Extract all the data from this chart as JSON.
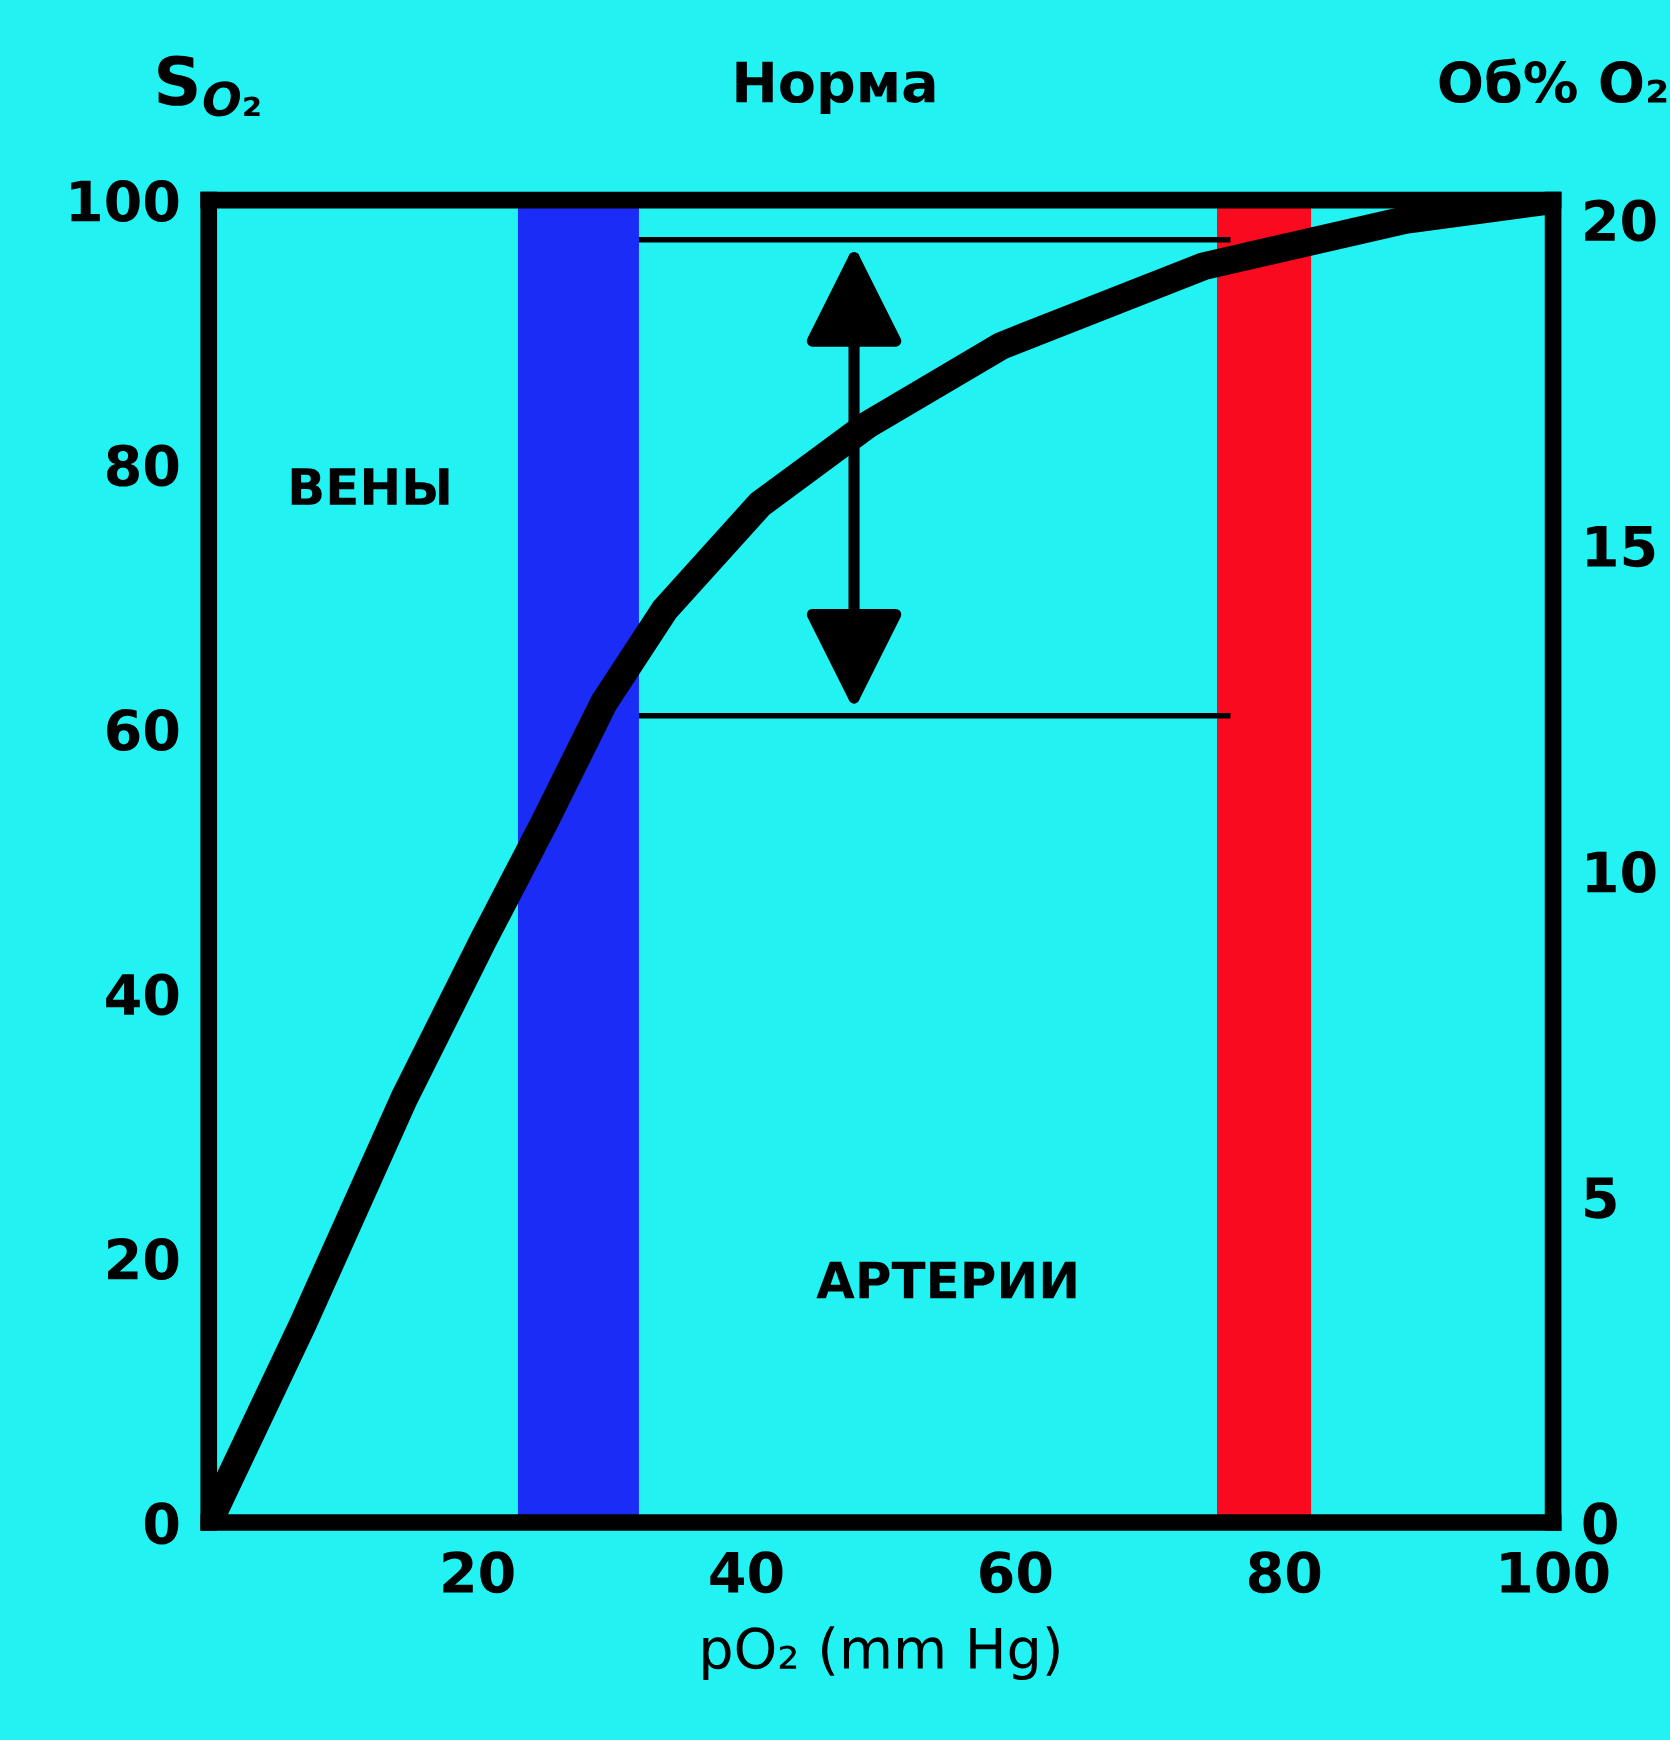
{
  "chart_data": {
    "type": "line",
    "title": "Норма",
    "xlabel": "pO₂ (mm Hg)",
    "ylabel": "S$_{O₂}$",
    "y2label": "Об% O₂",
    "xlim": [
      0,
      100
    ],
    "xticks": [
      20,
      40,
      60,
      80,
      100
    ],
    "ylim": [
      0,
      100
    ],
    "yticks": [
      0,
      20,
      40,
      60,
      80,
      100
    ],
    "y2lim": [
      0,
      20.3
    ],
    "y2ticks": [
      0,
      5,
      10,
      15,
      20
    ],
    "grid": false,
    "legend": false,
    "marker": "none",
    "line_style": "solid",
    "annotations": [
      "ВЕНЫ",
      "АРТЕРИИ"
    ],
    "bands": [
      {
        "axis": "x",
        "from": 23,
        "to": 32,
        "color": "#1a2cf5"
      },
      {
        "axis": "x",
        "from": 75,
        "to": 82,
        "color": "#fa0a1e"
      }
    ],
    "series": [
      {
        "color": "#000000",
        "x": [
          0,
          7,
          14.5,
          20.4,
          25,
          29.4,
          33.9,
          41,
          49,
          59,
          74,
          89,
          100
        ],
        "values": [
          0,
          15,
          32,
          44,
          53,
          62,
          69,
          77,
          83,
          89,
          95,
          98.5,
          100
        ]
      },
      {
        "color": "#000000",
        "x": [
          32,
          76
        ],
        "values": [
          97,
          97
        ]
      },
      {
        "color": "#000000",
        "x": [
          32,
          76
        ],
        "values": [
          61,
          61
        ]
      }
    ]
  }
}
